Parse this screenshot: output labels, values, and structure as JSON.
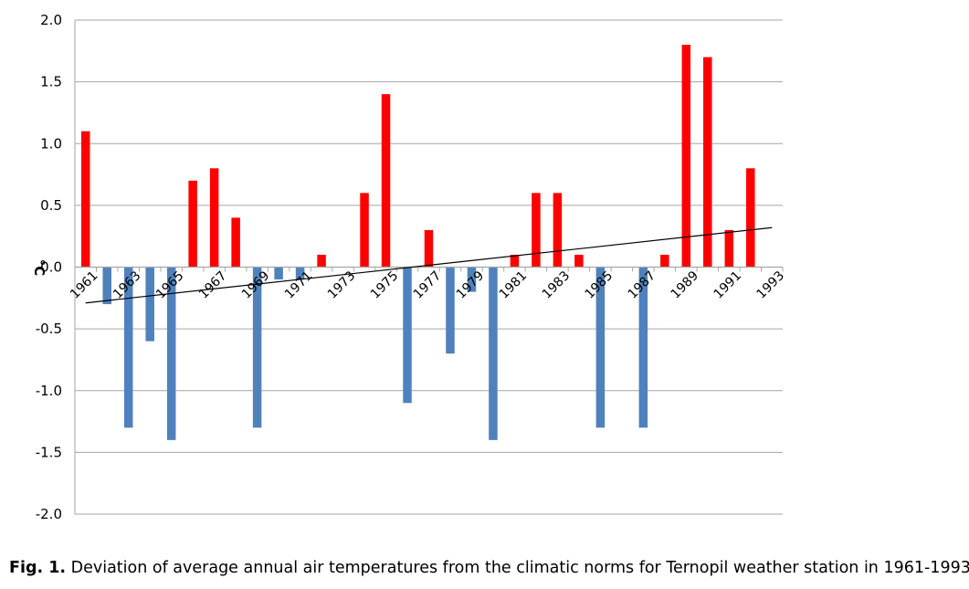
{
  "chart_data": {
    "type": "bar",
    "title": "",
    "xlabel": "",
    "ylabel": "°C",
    "ylim": [
      -2.0,
      2.0
    ],
    "yticks": [
      "2.0",
      "1.5",
      "1.0",
      "0.5",
      "0.0",
      "-0.5",
      "-1.0",
      "-1.5",
      "-2.0"
    ],
    "grid": true,
    "categories": [
      "1961",
      "1962",
      "1963",
      "1964",
      "1965",
      "1966",
      "1967",
      "1968",
      "1969",
      "1970",
      "1971",
      "1972",
      "1973",
      "1974",
      "1975",
      "1976",
      "1977",
      "1978",
      "1979",
      "1980",
      "1981",
      "1982",
      "1983",
      "1984",
      "1985",
      "1986",
      "1987",
      "1988",
      "1989",
      "1990",
      "1991",
      "1992",
      "1993"
    ],
    "tick_labels": [
      "1961",
      "",
      "1963",
      "",
      "1965",
      "",
      "1967",
      "",
      "1969",
      "",
      "1971",
      "",
      "1973",
      "",
      "1975",
      "",
      "1977",
      "",
      "1979",
      "",
      "1981",
      "",
      "1983",
      "",
      "1985",
      "",
      "1987",
      "",
      "1989",
      "",
      "1991",
      "",
      "1993"
    ],
    "values": [
      1.1,
      -0.3,
      -1.3,
      -0.6,
      -1.4,
      0.7,
      0.8,
      0.4,
      -1.3,
      -0.1,
      -0.1,
      0.1,
      0.0,
      0.6,
      1.4,
      -1.1,
      0.3,
      -0.7,
      -0.2,
      -1.4,
      0.1,
      0.6,
      0.6,
      0.1,
      -1.3,
      0.0,
      -1.3,
      0.1,
      1.8,
      1.7,
      0.3,
      0.8,
      0.0
    ],
    "positive_color": "#ff0000",
    "negative_color": "#4f81bd",
    "trend_line": {
      "name": "linear trend",
      "start": -0.29,
      "end": 0.32,
      "color": "#000000"
    }
  },
  "caption": {
    "label": "Fig. 1.",
    "text": " Deviation of average annual air temperatures from the climatic norms for Ternopil weather station in 1961-1993."
  }
}
